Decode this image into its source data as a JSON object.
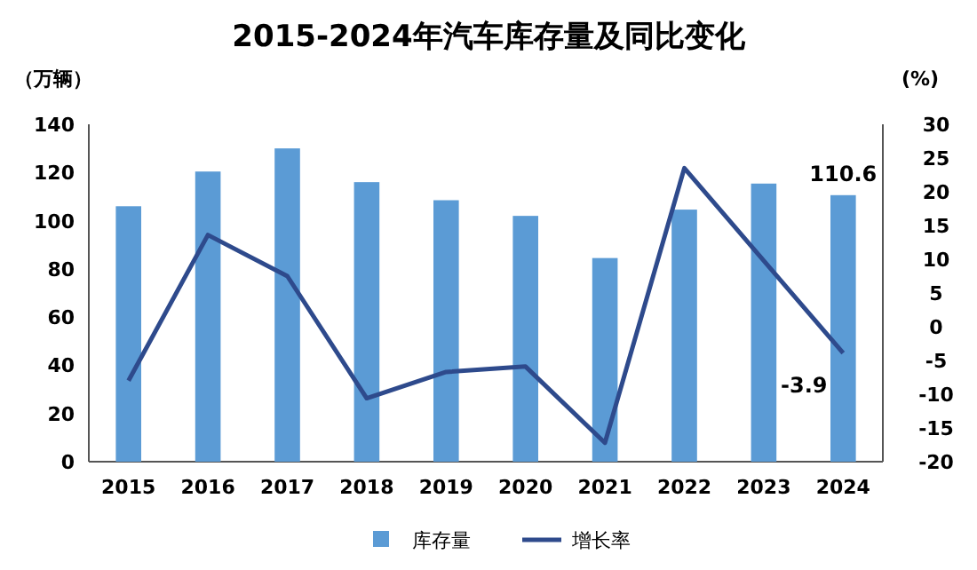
{
  "chart_data": {
    "type": "bar",
    "title": "2015-2024年汽车库存量及同比变化",
    "ylabel": "（万辆）",
    "y2label": "(%)",
    "categories": [
      "2015",
      "2016",
      "2017",
      "2018",
      "2019",
      "2020",
      "2021",
      "2022",
      "2023",
      "2024"
    ],
    "series": [
      {
        "name": "库存量",
        "color": "#5b9bd5",
        "values": [
          106,
          120.4,
          130,
          116,
          108.5,
          102,
          84.5,
          104.6,
          115.4,
          110.6
        ],
        "value_labels": [
          null,
          null,
          null,
          null,
          null,
          null,
          null,
          null,
          null,
          "110.6"
        ]
      },
      {
        "name": "增长率",
        "type": "line",
        "axis": "y2",
        "color": "#2e4a8c",
        "values": [
          -8,
          13.6,
          7.5,
          -10.6,
          -6.7,
          -5.9,
          -17.2,
          23.5,
          9.8,
          -3.9
        ],
        "value_labels": [
          null,
          null,
          null,
          null,
          null,
          null,
          null,
          null,
          null,
          "-3.9"
        ]
      }
    ],
    "ylim": [
      0,
      140
    ],
    "yticks": [
      0,
      20,
      40,
      60,
      80,
      100,
      120,
      140
    ],
    "y2lim": [
      -20,
      30
    ],
    "y2ticks": [
      -20,
      -15,
      -10,
      -5,
      0,
      5,
      10,
      15,
      20,
      25,
      30
    ],
    "grid": false,
    "legend": "bottom"
  }
}
